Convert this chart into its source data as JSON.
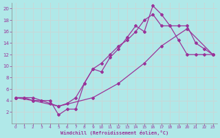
{
  "xlabel": "Windchill (Refroidissement éolien,°C)",
  "xlim": [
    -0.5,
    23.5
  ],
  "ylim": [
    0,
    21
  ],
  "xticks": [
    0,
    1,
    2,
    3,
    4,
    5,
    6,
    7,
    8,
    9,
    10,
    11,
    12,
    13,
    14,
    15,
    16,
    17,
    18,
    19,
    20,
    21,
    22,
    23
  ],
  "yticks": [
    2,
    4,
    6,
    8,
    10,
    12,
    14,
    16,
    18,
    20
  ],
  "bg_color": "#b0e8e8",
  "line_color": "#993399",
  "grid_color": "#d0d0d0",
  "line1_x": [
    0,
    1,
    2,
    3,
    4,
    5,
    6,
    7,
    8,
    9,
    10,
    11,
    12,
    13,
    14,
    15,
    16,
    17,
    18,
    19,
    20,
    21,
    22,
    23
  ],
  "line1_y": [
    4.5,
    4.5,
    4.5,
    4,
    4,
    1.5,
    2.5,
    2.5,
    7,
    9.5,
    9,
    11.5,
    13,
    15,
    17,
    16,
    20.5,
    19,
    17,
    14.5,
    12,
    12,
    12,
    12
  ],
  "line2_x": [
    0,
    1,
    2,
    3,
    4,
    5,
    6,
    7,
    8,
    9,
    10,
    11,
    12,
    13,
    14,
    15,
    16,
    17,
    18,
    19,
    20,
    21,
    22,
    23
  ],
  "line2_y": [
    4.5,
    4.5,
    4,
    4,
    3.5,
    3,
    3.5,
    4.5,
    7,
    9.5,
    10.5,
    12,
    13.5,
    14.5,
    16,
    18,
    19,
    17,
    17,
    17,
    17,
    14,
    13,
    12
  ],
  "line3_x": [
    0,
    2,
    5,
    9,
    12,
    15,
    17,
    20,
    23
  ],
  "line3_y": [
    4.5,
    4,
    3,
    4.5,
    7,
    10.5,
    13.5,
    16.5,
    12
  ]
}
